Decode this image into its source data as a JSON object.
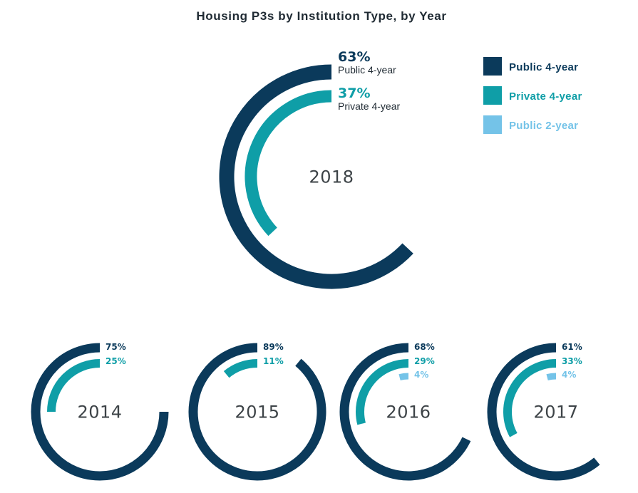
{
  "chart_data": {
    "type": "radial-bar",
    "title": "Housing P3s by Institution Type, by Year",
    "categories": [
      "Public 4-year",
      "Private 4-year",
      "Public 2-year"
    ],
    "colors": {
      "Public 4-year": "#0b3a5b",
      "Private 4-year": "#0f9ea7",
      "Public 2-year": "#74c3e8"
    },
    "legend": {
      "position": "top-right",
      "items": [
        {
          "label": "Public 4-year"
        },
        {
          "label": "Private 4-year"
        },
        {
          "label": "Public 2-year"
        }
      ]
    },
    "featured_year": "2018",
    "years": [
      {
        "year": "2018",
        "values": [
          {
            "category": "Public 4-year",
            "value": 63,
            "label": "63%"
          },
          {
            "category": "Private 4-year",
            "value": 37,
            "label": "37%"
          }
        ]
      },
      {
        "year": "2014",
        "values": [
          {
            "category": "Public 4-year",
            "value": 75,
            "label": "75%"
          },
          {
            "category": "Private 4-year",
            "value": 25,
            "label": "25%"
          }
        ]
      },
      {
        "year": "2015",
        "values": [
          {
            "category": "Public 4-year",
            "value": 89,
            "label": "89%"
          },
          {
            "category": "Private 4-year",
            "value": 11,
            "label": "11%"
          }
        ]
      },
      {
        "year": "2016",
        "values": [
          {
            "category": "Public 4-year",
            "value": 68,
            "label": "68%"
          },
          {
            "category": "Private 4-year",
            "value": 29,
            "label": "29%"
          },
          {
            "category": "Public 2-year",
            "value": 4,
            "label": "4%"
          }
        ]
      },
      {
        "year": "2017",
        "values": [
          {
            "category": "Public 4-year",
            "value": 61,
            "label": "61%"
          },
          {
            "category": "Private 4-year",
            "value": 33,
            "label": "33%"
          },
          {
            "category": "Public 2-year",
            "value": 4,
            "label": "4%"
          }
        ]
      }
    ]
  }
}
